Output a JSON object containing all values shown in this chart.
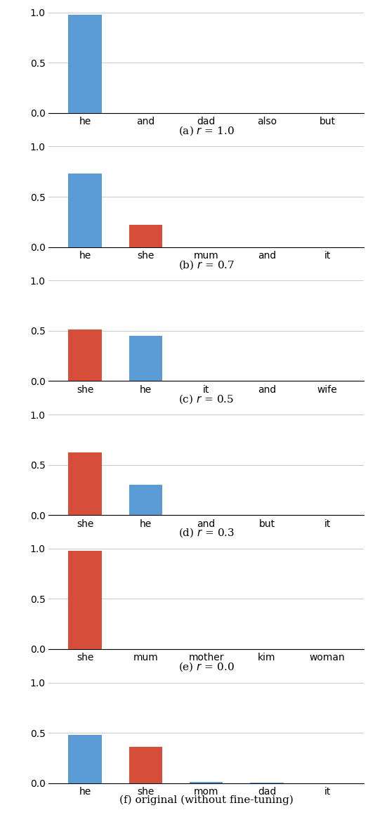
{
  "subplots": [
    {
      "label_parts": [
        "(a) ",
        "r",
        " = 1.0"
      ],
      "categories": [
        "he",
        "and",
        "dad",
        "also",
        "but"
      ],
      "values": [
        0.98,
        0.0,
        0.0,
        0.0,
        0.0
      ],
      "colors": [
        "#5b9bd5",
        "#5b9bd5",
        "#5b9bd5",
        "#5b9bd5",
        "#5b9bd5"
      ]
    },
    {
      "label_parts": [
        "(b) ",
        "r",
        " = 0.7"
      ],
      "categories": [
        "he",
        "she",
        "mum",
        "and",
        "it"
      ],
      "values": [
        0.73,
        0.22,
        0.0,
        0.0,
        0.0
      ],
      "colors": [
        "#5b9bd5",
        "#d64e3a",
        "#5b9bd5",
        "#5b9bd5",
        "#5b9bd5"
      ]
    },
    {
      "label_parts": [
        "(c) ",
        "r",
        " = 0.5"
      ],
      "categories": [
        "she",
        "he",
        "it",
        "and",
        "wife"
      ],
      "values": [
        0.51,
        0.45,
        0.0,
        0.0,
        0.0
      ],
      "colors": [
        "#d64e3a",
        "#5b9bd5",
        "#5b9bd5",
        "#5b9bd5",
        "#5b9bd5"
      ]
    },
    {
      "label_parts": [
        "(d) ",
        "r",
        " = 0.3"
      ],
      "categories": [
        "she",
        "he",
        "and",
        "but",
        "it"
      ],
      "values": [
        0.62,
        0.3,
        0.0,
        0.0,
        0.0
      ],
      "colors": [
        "#d64e3a",
        "#5b9bd5",
        "#5b9bd5",
        "#5b9bd5",
        "#5b9bd5"
      ]
    },
    {
      "label_parts": [
        "(e) ",
        "r",
        " = 0.0"
      ],
      "categories": [
        "she",
        "mum",
        "mother",
        "kim",
        "woman"
      ],
      "values": [
        0.98,
        0.0,
        0.0,
        0.0,
        0.0
      ],
      "colors": [
        "#d64e3a",
        "#d64e3a",
        "#d64e3a",
        "#d64e3a",
        "#d64e3a"
      ]
    },
    {
      "label_parts": [
        "(f) original (without fine-tuning)"
      ],
      "categories": [
        "he",
        "she",
        "mom",
        "dad",
        "it"
      ],
      "values": [
        0.48,
        0.36,
        0.01,
        0.005,
        0.0
      ],
      "colors": [
        "#5b9bd5",
        "#d64e3a",
        "#5b9bd5",
        "#5b9bd5",
        "#5b9bd5"
      ]
    }
  ],
  "ylim": [
    0.0,
    1.0
  ],
  "yticks": [
    0.0,
    0.5,
    1.0
  ],
  "blue_color": "#5b9bd5",
  "red_color": "#d64e3a",
  "background_color": "#ffffff",
  "grid_color": "#cccccc",
  "bar_width": 0.55,
  "tick_fontsize": 10,
  "label_fontsize": 11
}
